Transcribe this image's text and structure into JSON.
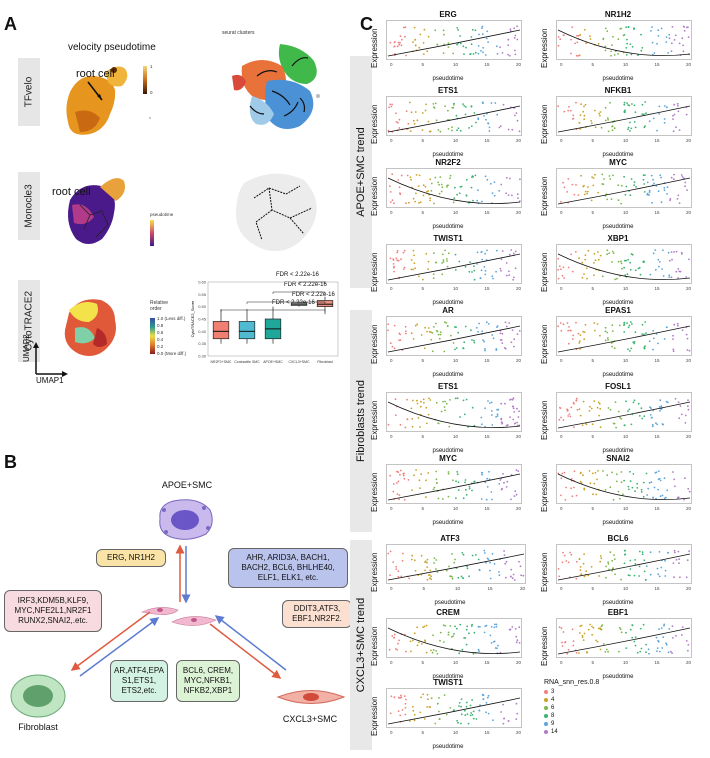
{
  "panels": {
    "a": "A",
    "b": "B",
    "c": "C"
  },
  "panel_a": {
    "row_labels": [
      "TFvelo",
      "Monocle3",
      "CytoTRACE2"
    ],
    "velocity_title": "velocity pseudotime",
    "seurat_title": "seurat clusters",
    "root_cell": "root cell",
    "scale_max": "1",
    "scale_min": "0",
    "monocle_legend_title": "pseudotime",
    "cyto_legend_title": "Relative order",
    "cyto_legend_top": "1.0 (Less diff.)",
    "cyto_legend_bottom": "0.0 (More diff.)",
    "cyto_legend_ticks": [
      "0.8",
      "0.6",
      "0.4",
      "0.2"
    ],
    "umap_x": "UMAP1",
    "umap_y": "UMAP2",
    "fdr_labels": [
      "FDR < 2.22e-16",
      "FDR < 2.22e-16",
      "FDR < 2.22e-16",
      "FDR < 2.22e-16"
    ],
    "boxplot_ylabel": "CytoTRACE2_Score",
    "boxplot_yticks": [
      "0.60",
      "0.55",
      "0.50",
      "0.45",
      "0.40",
      "0.35",
      "0.30"
    ]
  },
  "chart_data": {
    "type": "box",
    "title": "",
    "ylabel": "CytoTRACE2_Score",
    "categories": [
      "NR2F2+SMC",
      "Contractile SMC",
      "APOE+SMC",
      "CXCL3+SMC",
      "Fibroblast"
    ],
    "colors": [
      "#f07f72",
      "#4fbad0",
      "#1fa89a",
      "#e8e8e8",
      "#e8907f"
    ],
    "boxes": [
      {
        "low": 0.35,
        "q1": 0.37,
        "median": 0.4,
        "q3": 0.44,
        "high": 0.49
      },
      {
        "low": 0.35,
        "q1": 0.37,
        "median": 0.4,
        "q3": 0.44,
        "high": 0.49
      },
      {
        "low": 0.35,
        "q1": 0.37,
        "median": 0.41,
        "q3": 0.45,
        "high": 0.5
      },
      {
        "low": 0.5,
        "q1": 0.505,
        "median": 0.51,
        "q3": 0.515,
        "high": 0.52
      },
      {
        "low": 0.47,
        "q1": 0.5,
        "median": 0.51,
        "q3": 0.525,
        "high": 0.54
      }
    ],
    "ylim": [
      0.3,
      0.6
    ]
  },
  "panel_b": {
    "apoe_label": "APOE+SMC",
    "fibroblast_label": "Fibroblast",
    "cxcl3_label": "CXCL3+SMC",
    "box_erg": "ERG, NR1H2",
    "box_ahr": "AHR, ARID3A, BACH1, BACH2, BCL6, BHLHE40, ELF1, ELK1, etc.",
    "box_irf3": "IRF3,KDM5B,KLF9, MYC,NFE2L1,NR2F1 RUNX2,SNAI2,.etc.",
    "box_ddit3": "DDIT3,ATF3, EBF1,NR2F2.",
    "box_ar": "AR,ATF4,EPA S1,ETS1, ETS2,etc.",
    "box_bcl6": "BCL6, CREM, MYC,NFKB1, NFKB2,XBP1",
    "colors": {
      "yellow": "#f9e3a6",
      "blue": "#b9c3ec",
      "pink": "#f7dbe0",
      "peach": "#fbe0d2",
      "mint": "#d4f2e4",
      "lightgreen": "#ddf3d6",
      "red": "#e05a3f",
      "arrowblue": "#5d7bd0"
    }
  },
  "panel_c": {
    "trends": [
      "APOE+SMC trend",
      "Fibroblasts trend",
      "CXCL3+SMC trend"
    ],
    "ylabel": "Expression",
    "xlabel": "pseudotime",
    "xticks": [
      "0",
      "5",
      "10",
      "15",
      "20"
    ],
    "genes": [
      "ERG",
      "NR1H2",
      "ETS1",
      "NFKB1",
      "NR2F2",
      "MYC",
      "TWIST1",
      "XBP1",
      "AR",
      "EPAS1",
      "ETS1",
      "FOSL1",
      "MYC",
      "SNAI2",
      "ATF3",
      "BCL6",
      "CREM",
      "EBF1",
      "TWIST1"
    ],
    "legend_title": "RNA_snn_res.0.8",
    "legend_items": [
      "3",
      "4",
      "6",
      "8",
      "9",
      "14"
    ],
    "legend_colors": [
      "#f08080",
      "#c9a227",
      "#7bb84a",
      "#3cb371",
      "#5da5da",
      "#b07cc6"
    ]
  }
}
